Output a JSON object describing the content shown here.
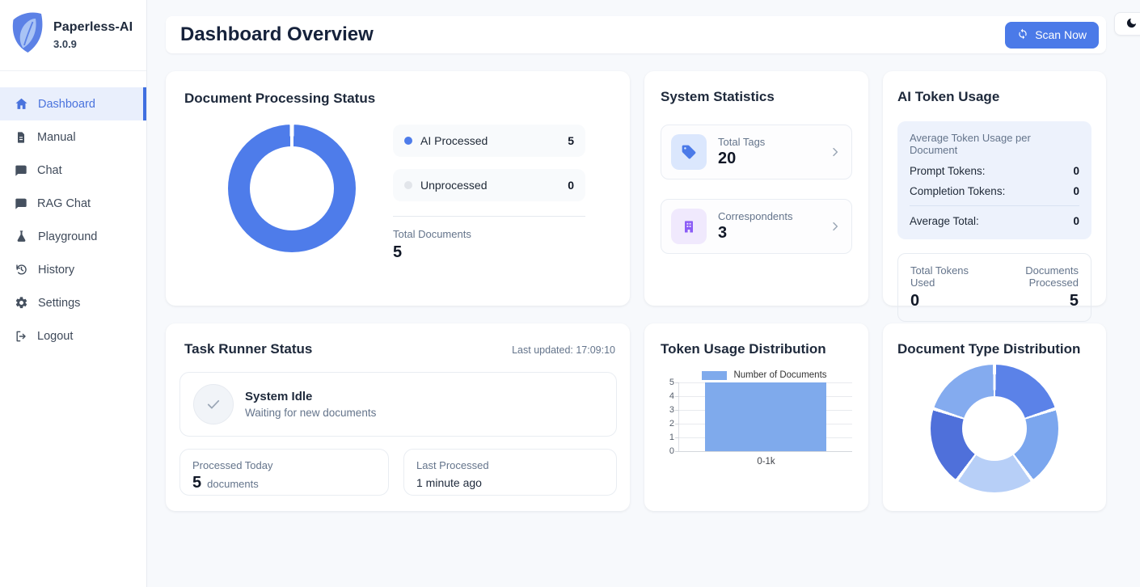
{
  "app": {
    "name": "Paperless-AI",
    "version": "3.0.9"
  },
  "colors": {
    "primary": "#4b7ae8",
    "sidebar_active": "#4a73dd",
    "processed_blue": "#4e7cea",
    "unprocessed_gray": "#e2e5ea",
    "bar_blue": "#7faaec",
    "tag_icon_blue": "#4b7ae8",
    "tag_bg": "#dbe7fd",
    "correspondent_icon_purple": "#8b5cf6",
    "correspondent_bg": "#f0e9fd"
  },
  "sidebar": {
    "items": [
      {
        "label": "Dashboard",
        "icon": "home-icon",
        "active": true
      },
      {
        "label": "Manual",
        "icon": "document-icon",
        "active": false
      },
      {
        "label": "Chat",
        "icon": "chat-icon",
        "active": false
      },
      {
        "label": "RAG Chat",
        "icon": "chat-icon",
        "active": false
      },
      {
        "label": "Playground",
        "icon": "flask-icon",
        "active": false
      },
      {
        "label": "History",
        "icon": "history-icon",
        "active": false
      },
      {
        "label": "Settings",
        "icon": "gear-icon",
        "active": false
      },
      {
        "label": "Logout",
        "icon": "logout-icon",
        "active": false
      }
    ]
  },
  "header": {
    "title": "Dashboard Overview",
    "scan_button": "Scan Now",
    "scan_button_icon": "refresh-icon",
    "theme_toggle_icon": "moon-icon"
  },
  "cards": {
    "processing": {
      "title": "Document Processing Status",
      "legend": [
        {
          "label": "AI Processed",
          "value": 5,
          "color": "#4e7cea"
        },
        {
          "label": "Unprocessed",
          "value": 0,
          "color": "#e2e5ea"
        }
      ],
      "total_label": "Total Documents",
      "total_value": 5
    },
    "stats": {
      "title": "System Statistics",
      "items": [
        {
          "label": "Total Tags",
          "value": 20,
          "icon": "tag-icon"
        },
        {
          "label": "Correspondents",
          "value": 3,
          "icon": "building-icon"
        }
      ]
    },
    "tokens": {
      "title": "AI Token Usage",
      "avg_heading": "Average Token Usage per Document",
      "rows": [
        {
          "label": "Prompt Tokens:",
          "value": 0
        },
        {
          "label": "Completion Tokens:",
          "value": 0
        }
      ],
      "total_row": {
        "label": "Average Total:",
        "value": 0
      },
      "totals_box": {
        "left_label": "Total Tokens Used",
        "left_value": 0,
        "right_label": "Documents Processed",
        "right_value": 5
      }
    },
    "task": {
      "title": "Task Runner Status",
      "last_updated": "Last updated: 17:09:10",
      "status_title": "System Idle",
      "status_sub": "Waiting for new documents",
      "processed_label": "Processed Today",
      "processed_value": 5,
      "processed_unit": "documents",
      "last_label": "Last Processed",
      "last_value": "1 minute ago"
    },
    "token_chart": {
      "title": "Token Usage Distribution"
    },
    "doc_types": {
      "title": "Document Type Distribution"
    }
  },
  "chart_data": [
    {
      "id": "processing-donut",
      "type": "pie",
      "subtype": "donut",
      "title": "Document Processing Status",
      "labels": [
        "AI Processed",
        "Unprocessed"
      ],
      "values": [
        5,
        0
      ],
      "colors": [
        "#4e7cea",
        "#e2e5ea"
      ],
      "legend_position": "right"
    },
    {
      "id": "token-usage-bar",
      "type": "bar",
      "title": "Token Usage Distribution",
      "categories": [
        "0-1k"
      ],
      "values": [
        5
      ],
      "ylim": [
        0,
        5
      ],
      "yticks": [
        0,
        1,
        2,
        3,
        4,
        5
      ],
      "grid": true,
      "legend": [
        "Number of Documents"
      ],
      "legend_position": "top",
      "bar_color": "#7faaec"
    },
    {
      "id": "document-type-donut",
      "type": "pie",
      "subtype": "donut",
      "title": "Document Type Distribution",
      "labels": [
        "",
        "",
        "",
        "",
        ""
      ],
      "values": [
        1,
        1,
        1,
        1,
        1
      ],
      "colors": [
        "#5b82e8",
        "#7ba6ee",
        "#b7cff7",
        "#4f70da",
        "#84abef"
      ],
      "legend_position": "none"
    }
  ]
}
